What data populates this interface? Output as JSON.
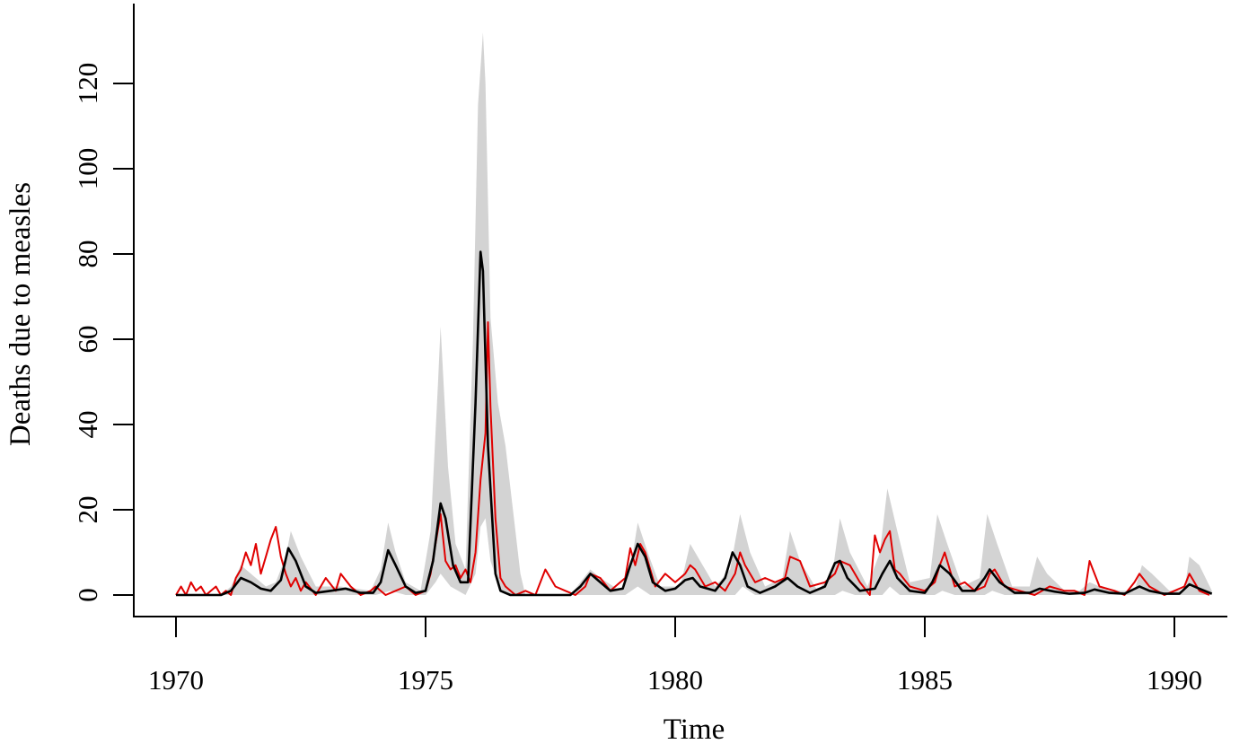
{
  "chart_data": {
    "type": "line",
    "xlabel": "Time",
    "ylabel": "Deaths due to measles",
    "xlim": [
      1970,
      1990.8
    ],
    "ylim": [
      0,
      130
    ],
    "xticks": [
      1970,
      1975,
      1980,
      1985,
      1990
    ],
    "yticks": [
      0,
      20,
      40,
      60,
      80,
      100,
      120
    ],
    "grid": false,
    "legend": "none",
    "colors": {
      "observed": "#e00000",
      "fitted": "#000000",
      "band": "#d3d3d3"
    },
    "series": [
      {
        "role": "observed",
        "style": "line",
        "x": [
          1970.0,
          1970.1,
          1970.2,
          1970.3,
          1970.4,
          1970.5,
          1970.6,
          1970.7,
          1970.8,
          1970.9,
          1971.0,
          1971.1,
          1971.2,
          1971.3,
          1971.4,
          1971.5,
          1971.6,
          1971.7,
          1971.8,
          1971.9,
          1972.0,
          1972.1,
          1972.2,
          1972.3,
          1972.4,
          1972.5,
          1972.6,
          1972.8,
          1973.0,
          1973.2,
          1973.3,
          1973.5,
          1973.7,
          1973.9,
          1974.0,
          1974.2,
          1974.4,
          1974.6,
          1974.8,
          1975.0,
          1975.1,
          1975.2,
          1975.3,
          1975.4,
          1975.5,
          1975.6,
          1975.7,
          1975.8,
          1975.9,
          1976.0,
          1976.1,
          1976.2,
          1976.25,
          1976.3,
          1976.4,
          1976.5,
          1976.6,
          1976.8,
          1977.0,
          1977.2,
          1977.4,
          1977.6,
          1977.8,
          1978.0,
          1978.2,
          1978.3,
          1978.5,
          1978.7,
          1978.9,
          1979.0,
          1979.1,
          1979.2,
          1979.3,
          1979.4,
          1979.6,
          1979.8,
          1980.0,
          1980.2,
          1980.3,
          1980.4,
          1980.6,
          1980.8,
          1981.0,
          1981.2,
          1981.3,
          1981.4,
          1981.6,
          1981.8,
          1982.0,
          1982.2,
          1982.3,
          1982.5,
          1982.7,
          1983.0,
          1983.2,
          1983.3,
          1983.5,
          1983.7,
          1983.9,
          1984.0,
          1984.1,
          1984.2,
          1984.3,
          1984.4,
          1984.5,
          1984.7,
          1985.0,
          1985.2,
          1985.3,
          1985.4,
          1985.6,
          1985.8,
          1986.0,
          1986.2,
          1986.3,
          1986.4,
          1986.6,
          1986.9,
          1987.2,
          1987.5,
          1987.8,
          1988.0,
          1988.2,
          1988.3,
          1988.5,
          1988.8,
          1989.0,
          1989.2,
          1989.3,
          1989.5,
          1989.8,
          1990.0,
          1990.2,
          1990.3,
          1990.5,
          1990.7
        ],
        "y": [
          0,
          2,
          0,
          3,
          1,
          2,
          0,
          1,
          2,
          0,
          1,
          0,
          4,
          6,
          10,
          7,
          12,
          5,
          9,
          13,
          16,
          9,
          5,
          2,
          4,
          1,
          3,
          0,
          4,
          1,
          5,
          2,
          0,
          1,
          2,
          0,
          1,
          2,
          0,
          1,
          5,
          12,
          19,
          8,
          6,
          7,
          4,
          6,
          3,
          10,
          27,
          38,
          64,
          44,
          18,
          4,
          2,
          0,
          1,
          0,
          6,
          2,
          1,
          0,
          2,
          5,
          4,
          1,
          3,
          4,
          11,
          7,
          12,
          10,
          2,
          5,
          3,
          5,
          7,
          6,
          2,
          3,
          1,
          5,
          10,
          7,
          3,
          4,
          3,
          4,
          9,
          8,
          2,
          3,
          5,
          8,
          7,
          3,
          0,
          14,
          10,
          13,
          15,
          6,
          5,
          2,
          1,
          3,
          7,
          10,
          2,
          3,
          1,
          2,
          5,
          6,
          2,
          1,
          0,
          2,
          1,
          1,
          0,
          8,
          2,
          1,
          0,
          3,
          5,
          2,
          0,
          1,
          2,
          5,
          1,
          0
        ]
      },
      {
        "role": "fitted",
        "style": "line",
        "x": [
          1970.0,
          1970.5,
          1970.9,
          1971.1,
          1971.3,
          1971.5,
          1971.7,
          1971.9,
          1972.1,
          1972.25,
          1972.4,
          1972.6,
          1972.8,
          1973.1,
          1973.4,
          1973.7,
          1973.95,
          1974.1,
          1974.25,
          1974.4,
          1974.6,
          1974.8,
          1975.0,
          1975.15,
          1975.3,
          1975.4,
          1975.55,
          1975.7,
          1975.85,
          1976.0,
          1976.1,
          1976.15,
          1976.25,
          1976.4,
          1976.5,
          1976.7,
          1977.0,
          1977.5,
          1977.9,
          1978.1,
          1978.3,
          1978.5,
          1978.7,
          1978.95,
          1979.1,
          1979.25,
          1979.4,
          1979.55,
          1979.8,
          1980.0,
          1980.2,
          1980.35,
          1980.5,
          1980.8,
          1981.0,
          1981.15,
          1981.3,
          1981.45,
          1981.7,
          1982.0,
          1982.25,
          1982.45,
          1982.7,
          1983.0,
          1983.2,
          1983.3,
          1983.45,
          1983.7,
          1984.0,
          1984.15,
          1984.3,
          1984.45,
          1984.7,
          1985.0,
          1985.15,
          1985.3,
          1985.5,
          1985.75,
          1986.0,
          1986.2,
          1986.3,
          1986.5,
          1986.8,
          1987.1,
          1987.3,
          1987.6,
          1987.9,
          1988.2,
          1988.4,
          1988.7,
          1989.0,
          1989.3,
          1989.5,
          1989.8,
          1990.1,
          1990.3,
          1990.5,
          1990.75
        ],
        "y": [
          0,
          0,
          0,
          1,
          4,
          3,
          1.5,
          1,
          3.5,
          11,
          8,
          2,
          0.5,
          1,
          1.5,
          0.5,
          0.5,
          3,
          10.5,
          7,
          2,
          0.5,
          1,
          8,
          21.5,
          18,
          7,
          3,
          3,
          45,
          80.5,
          76,
          35,
          5,
          1,
          0,
          0,
          0,
          0,
          2,
          5,
          3,
          1,
          1.5,
          7,
          12,
          9,
          3,
          1,
          1.5,
          3.5,
          4,
          2,
          1,
          4,
          10,
          7,
          2,
          0.5,
          2,
          4,
          2,
          0.5,
          2,
          7.5,
          8,
          4,
          1,
          1.5,
          5,
          8,
          4,
          1,
          0.5,
          3,
          7,
          5,
          1,
          1,
          4,
          6,
          3,
          0.5,
          0.5,
          1.5,
          0.8,
          0.3,
          0.5,
          1.3,
          0.5,
          0.3,
          2,
          1,
          0.3,
          0.3,
          2.5,
          1.5,
          0.3
        ]
      },
      {
        "role": "band-upper",
        "style": "area",
        "x": [
          1970.0,
          1970.9,
          1971.1,
          1971.3,
          1971.5,
          1971.8,
          1972.0,
          1972.2,
          1972.3,
          1972.5,
          1972.8,
          1973.3,
          1973.9,
          1974.1,
          1974.25,
          1974.4,
          1974.6,
          1974.9,
          1975.1,
          1975.25,
          1975.3,
          1975.45,
          1975.6,
          1975.8,
          1975.95,
          1976.05,
          1976.15,
          1976.2,
          1976.3,
          1976.45,
          1976.6,
          1976.75,
          1976.9,
          1977.0,
          1977.9,
          1978.1,
          1978.3,
          1978.5,
          1978.9,
          1979.1,
          1979.25,
          1979.45,
          1979.7,
          1980.1,
          1980.3,
          1980.5,
          1980.8,
          1981.1,
          1981.3,
          1981.5,
          1981.8,
          1982.15,
          1982.3,
          1982.5,
          1982.85,
          1983.15,
          1983.3,
          1983.5,
          1983.85,
          1984.1,
          1984.25,
          1984.45,
          1984.7,
          1985.1,
          1985.25,
          1985.45,
          1985.75,
          1986.1,
          1986.25,
          1986.45,
          1986.75,
          1987.1,
          1987.25,
          1987.45,
          1987.8,
          1988.1,
          1988.3,
          1988.5,
          1988.9,
          1989.2,
          1989.35,
          1989.55,
          1989.9,
          1990.2,
          1990.3,
          1990.5,
          1990.75
        ],
        "y": [
          0,
          0,
          2,
          7,
          5,
          2,
          3,
          9,
          15,
          9,
          2,
          2,
          1,
          6,
          17,
          10,
          3,
          1,
          15,
          50,
          63,
          30,
          12,
          6,
          60,
          115,
          132,
          120,
          65,
          45,
          35,
          20,
          5,
          0,
          0,
          3,
          6,
          4,
          1,
          6,
          17,
          10,
          2,
          2,
          12,
          8,
          2,
          6,
          19,
          10,
          2,
          4,
          15,
          8,
          1,
          5,
          18,
          10,
          2,
          10,
          25,
          15,
          3,
          4,
          19,
          12,
          2,
          4,
          19,
          12,
          2,
          2,
          9,
          5,
          1,
          1,
          3,
          2,
          1,
          1,
          7,
          5,
          1,
          1,
          9,
          7,
          1
        ]
      },
      {
        "role": "band-lower",
        "style": "area",
        "x": [
          1970.0,
          1974.0,
          1974.3,
          1974.6,
          1975.0,
          1975.2,
          1975.3,
          1975.5,
          1975.8,
          1976.0,
          1976.1,
          1976.2,
          1976.3,
          1976.5,
          1976.7,
          1977.0,
          1979.0,
          1979.25,
          1979.5,
          1980.0,
          1981.2,
          1981.35,
          1981.6,
          1983.2,
          1983.35,
          1983.6,
          1984.15,
          1984.3,
          1984.5,
          1985.2,
          1985.35,
          1985.6,
          1986.2,
          1986.35,
          1986.6,
          1990.75
        ],
        "y": [
          0,
          0,
          1,
          0,
          0,
          3,
          5,
          2,
          0,
          5,
          16,
          18,
          8,
          1,
          0,
          0,
          0,
          2,
          0,
          0,
          0,
          2,
          0,
          0,
          1,
          0,
          0,
          2,
          0,
          0,
          1,
          0,
          0,
          1,
          0,
          0
        ]
      }
    ]
  }
}
